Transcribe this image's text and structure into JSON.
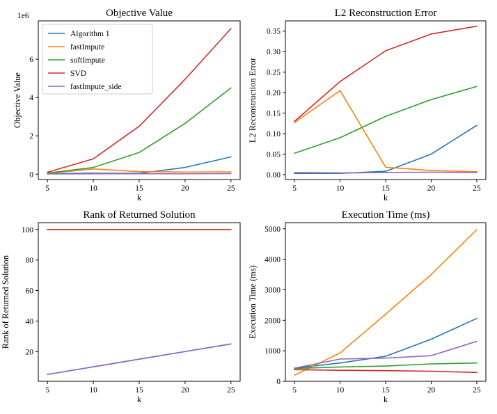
{
  "colors": {
    "Algorithm 1": "#1f77b4",
    "fastImpute": "#ff7f0e",
    "softImpute": "#2ca02c",
    "SVD": "#d62728",
    "fastImpute_side": "#9467bd"
  },
  "legend": [
    "Algorithm 1",
    "fastImpute",
    "softImpute",
    "SVD",
    "fastImpute_side"
  ],
  "chart_data": [
    {
      "type": "line",
      "title": "Objective Value",
      "xlabel": "k",
      "ylabel": "Objective Value",
      "offset_text": "1e6",
      "x": [
        5,
        10,
        15,
        20,
        25
      ],
      "xlim": [
        4,
        26
      ],
      "ylim": [
        -0.28,
        8.0
      ],
      "yticks": [
        0,
        2,
        4,
        6
      ],
      "ytick_labels": [
        "0",
        "2",
        "4",
        "6"
      ],
      "legend_loc": "upper-left",
      "series": [
        {
          "name": "Algorithm 1",
          "values": [
            0.03,
            0.05,
            0.04,
            0.35,
            0.9
          ]
        },
        {
          "name": "fastImpute",
          "values": [
            0.05,
            0.27,
            0.13,
            0.11,
            0.12
          ]
        },
        {
          "name": "softImpute",
          "values": [
            0.06,
            0.35,
            1.13,
            2.65,
            4.5
          ]
        },
        {
          "name": "SVD",
          "values": [
            0.1,
            0.8,
            2.5,
            4.95,
            7.6
          ]
        },
        {
          "name": "fastImpute_side",
          "values": [
            0.01,
            0.02,
            0.02,
            0.02,
            0.03
          ]
        }
      ]
    },
    {
      "type": "line",
      "title": "L2 Reconstruction Error",
      "xlabel": "k",
      "ylabel": "L2 Reconstruction Error",
      "x": [
        5,
        10,
        15,
        20,
        25
      ],
      "xlim": [
        4,
        26
      ],
      "ylim": [
        -0.012,
        0.375
      ],
      "yticks": [
        0.0,
        0.05,
        0.1,
        0.15,
        0.2,
        0.25,
        0.3,
        0.35
      ],
      "ytick_labels": [
        "0.00",
        "0.05",
        "0.10",
        "0.15",
        "0.20",
        "0.25",
        "0.30",
        "0.35"
      ],
      "series": [
        {
          "name": "Algorithm 1",
          "values": [
            0.003,
            0.003,
            0.008,
            0.05,
            0.12
          ]
        },
        {
          "name": "fastImpute",
          "values": [
            0.127,
            0.205,
            0.018,
            0.01,
            0.007
          ]
        },
        {
          "name": "softImpute",
          "values": [
            0.052,
            0.09,
            0.142,
            0.183,
            0.215
          ]
        },
        {
          "name": "SVD",
          "values": [
            0.13,
            0.227,
            0.302,
            0.343,
            0.362
          ]
        },
        {
          "name": "fastImpute_side",
          "values": [
            0.005,
            0.004,
            0.005,
            0.006,
            0.005
          ]
        }
      ]
    },
    {
      "type": "line",
      "title": "Rank of Returned Solution",
      "xlabel": "k",
      "ylabel": "Rank of Returned Solution",
      "x": [
        5,
        10,
        15,
        20,
        25
      ],
      "xlim": [
        4,
        26
      ],
      "ylim": [
        0.5,
        104.5
      ],
      "yticks": [
        20,
        40,
        60,
        80,
        100
      ],
      "ytick_labels": [
        "20",
        "40",
        "60",
        "80",
        "100"
      ],
      "series": [
        {
          "name": "Algorithm 1",
          "values": [
            5,
            10,
            15,
            20,
            25
          ]
        },
        {
          "name": "fastImpute",
          "values": [
            100,
            100,
            100,
            100,
            100
          ]
        },
        {
          "name": "softImpute",
          "values": [
            100,
            100,
            100,
            100,
            100
          ]
        },
        {
          "name": "SVD",
          "values": [
            100,
            100,
            100,
            100,
            100
          ]
        },
        {
          "name": "fastImpute_side",
          "values": [
            5,
            10,
            15,
            20,
            25
          ]
        }
      ]
    },
    {
      "type": "line",
      "title": "Execution Time (ms)",
      "xlabel": "k",
      "ylabel": "Execution Time (ms)",
      "x": [
        5,
        10,
        15,
        20,
        25
      ],
      "xlim": [
        4,
        26
      ],
      "ylim": [
        0,
        5200
      ],
      "yticks": [
        0,
        1000,
        2000,
        3000,
        4000,
        5000
      ],
      "ytick_labels": [
        "0",
        "1000",
        "2000",
        "3000",
        "4000",
        "5000"
      ],
      "series": [
        {
          "name": "Algorithm 1",
          "values": [
            430,
            600,
            820,
            1380,
            2060
          ]
        },
        {
          "name": "fastImpute",
          "values": [
            200,
            930,
            2200,
            3500,
            4970
          ]
        },
        {
          "name": "softImpute",
          "values": [
            420,
            470,
            500,
            570,
            600
          ]
        },
        {
          "name": "SVD",
          "values": [
            380,
            360,
            350,
            330,
            290
          ]
        },
        {
          "name": "fastImpute_side",
          "values": [
            430,
            730,
            760,
            840,
            1310
          ]
        }
      ]
    }
  ]
}
